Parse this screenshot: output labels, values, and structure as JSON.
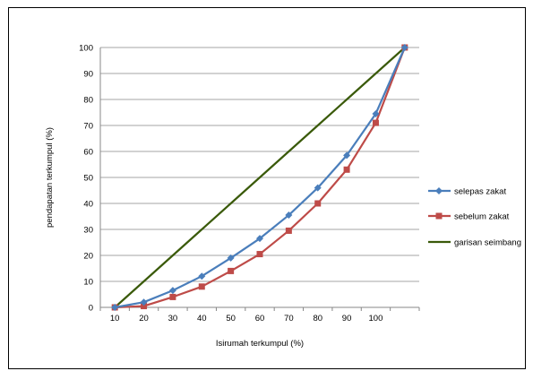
{
  "chart_data": {
    "type": "line",
    "title": "",
    "xlabel": "Isirumah terkumpul (%)",
    "ylabel": "pendapatan terkumpul  (%)",
    "x_ticks": [
      "10",
      "20",
      "30",
      "40",
      "50",
      "60",
      "70",
      "80",
      "90",
      "100"
    ],
    "y_ticks": [
      "0",
      "10",
      "20",
      "30",
      "40",
      "50",
      "60",
      "70",
      "80",
      "90",
      "100"
    ],
    "ylim": [
      0,
      100
    ],
    "grid": "horizontal",
    "legend_position": "right",
    "x": [
      0,
      10,
      20,
      30,
      40,
      50,
      60,
      70,
      80,
      90,
      100
    ],
    "series": [
      {
        "name": "selepas zakat",
        "color": "#4a7ebb",
        "marker": "diamond",
        "values": [
          0,
          2,
          6.5,
          12,
          19,
          26.5,
          35.5,
          46,
          58.5,
          74.5,
          100
        ]
      },
      {
        "name": "sebelum zakat",
        "color": "#be4b48",
        "marker": "square",
        "values": [
          0,
          0.5,
          4,
          8,
          14,
          20.5,
          29.5,
          40,
          53,
          71,
          100
        ]
      },
      {
        "name": "garisan seimbang",
        "color": "#3a5a0a",
        "marker": "none",
        "values": [
          0,
          10,
          20,
          30,
          40,
          50,
          60,
          70,
          80,
          90,
          100
        ]
      }
    ]
  }
}
